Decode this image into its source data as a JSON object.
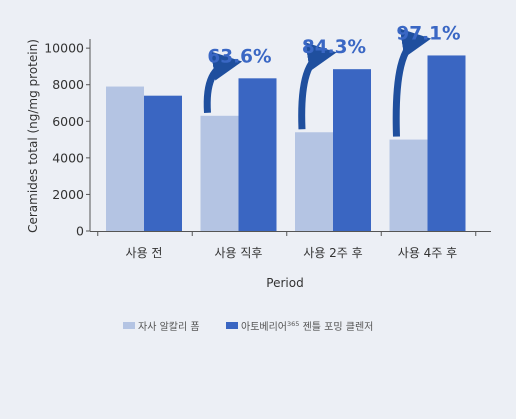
{
  "colors": {
    "series_a": "#b4c4e3",
    "series_b": "#3a66c2",
    "arrow": "#1f4f9e",
    "annotation": "#3a67c4",
    "axis": "#555555",
    "background": "#eceff5"
  },
  "chart_data": {
    "type": "bar",
    "xlabel": "Period",
    "ylabel": "Ceramides total (ng/mg protein)",
    "ylim": [
      0,
      10500
    ],
    "yticks": [
      0,
      2000,
      4000,
      6000,
      8000,
      10000
    ],
    "grid": false,
    "legend_position": "bottom",
    "categories": [
      "사용 전",
      "사용 직후",
      "사용 2주 후",
      "사용 4주 후"
    ],
    "series": [
      {
        "name": "자사 알칼리 폼",
        "values": [
          7900,
          6300,
          5400,
          5000
        ]
      },
      {
        "name": "아토베리어",
        "name_sup": "365",
        "name_suffix": " 젠틀 포밍 클렌저",
        "values": [
          7400,
          8350,
          8850,
          9600
        ]
      }
    ],
    "annotations": [
      {
        "category_index": 1,
        "text": "63.6%"
      },
      {
        "category_index": 2,
        "text": "84.3%"
      },
      {
        "category_index": 3,
        "text": "97.1%"
      }
    ]
  }
}
